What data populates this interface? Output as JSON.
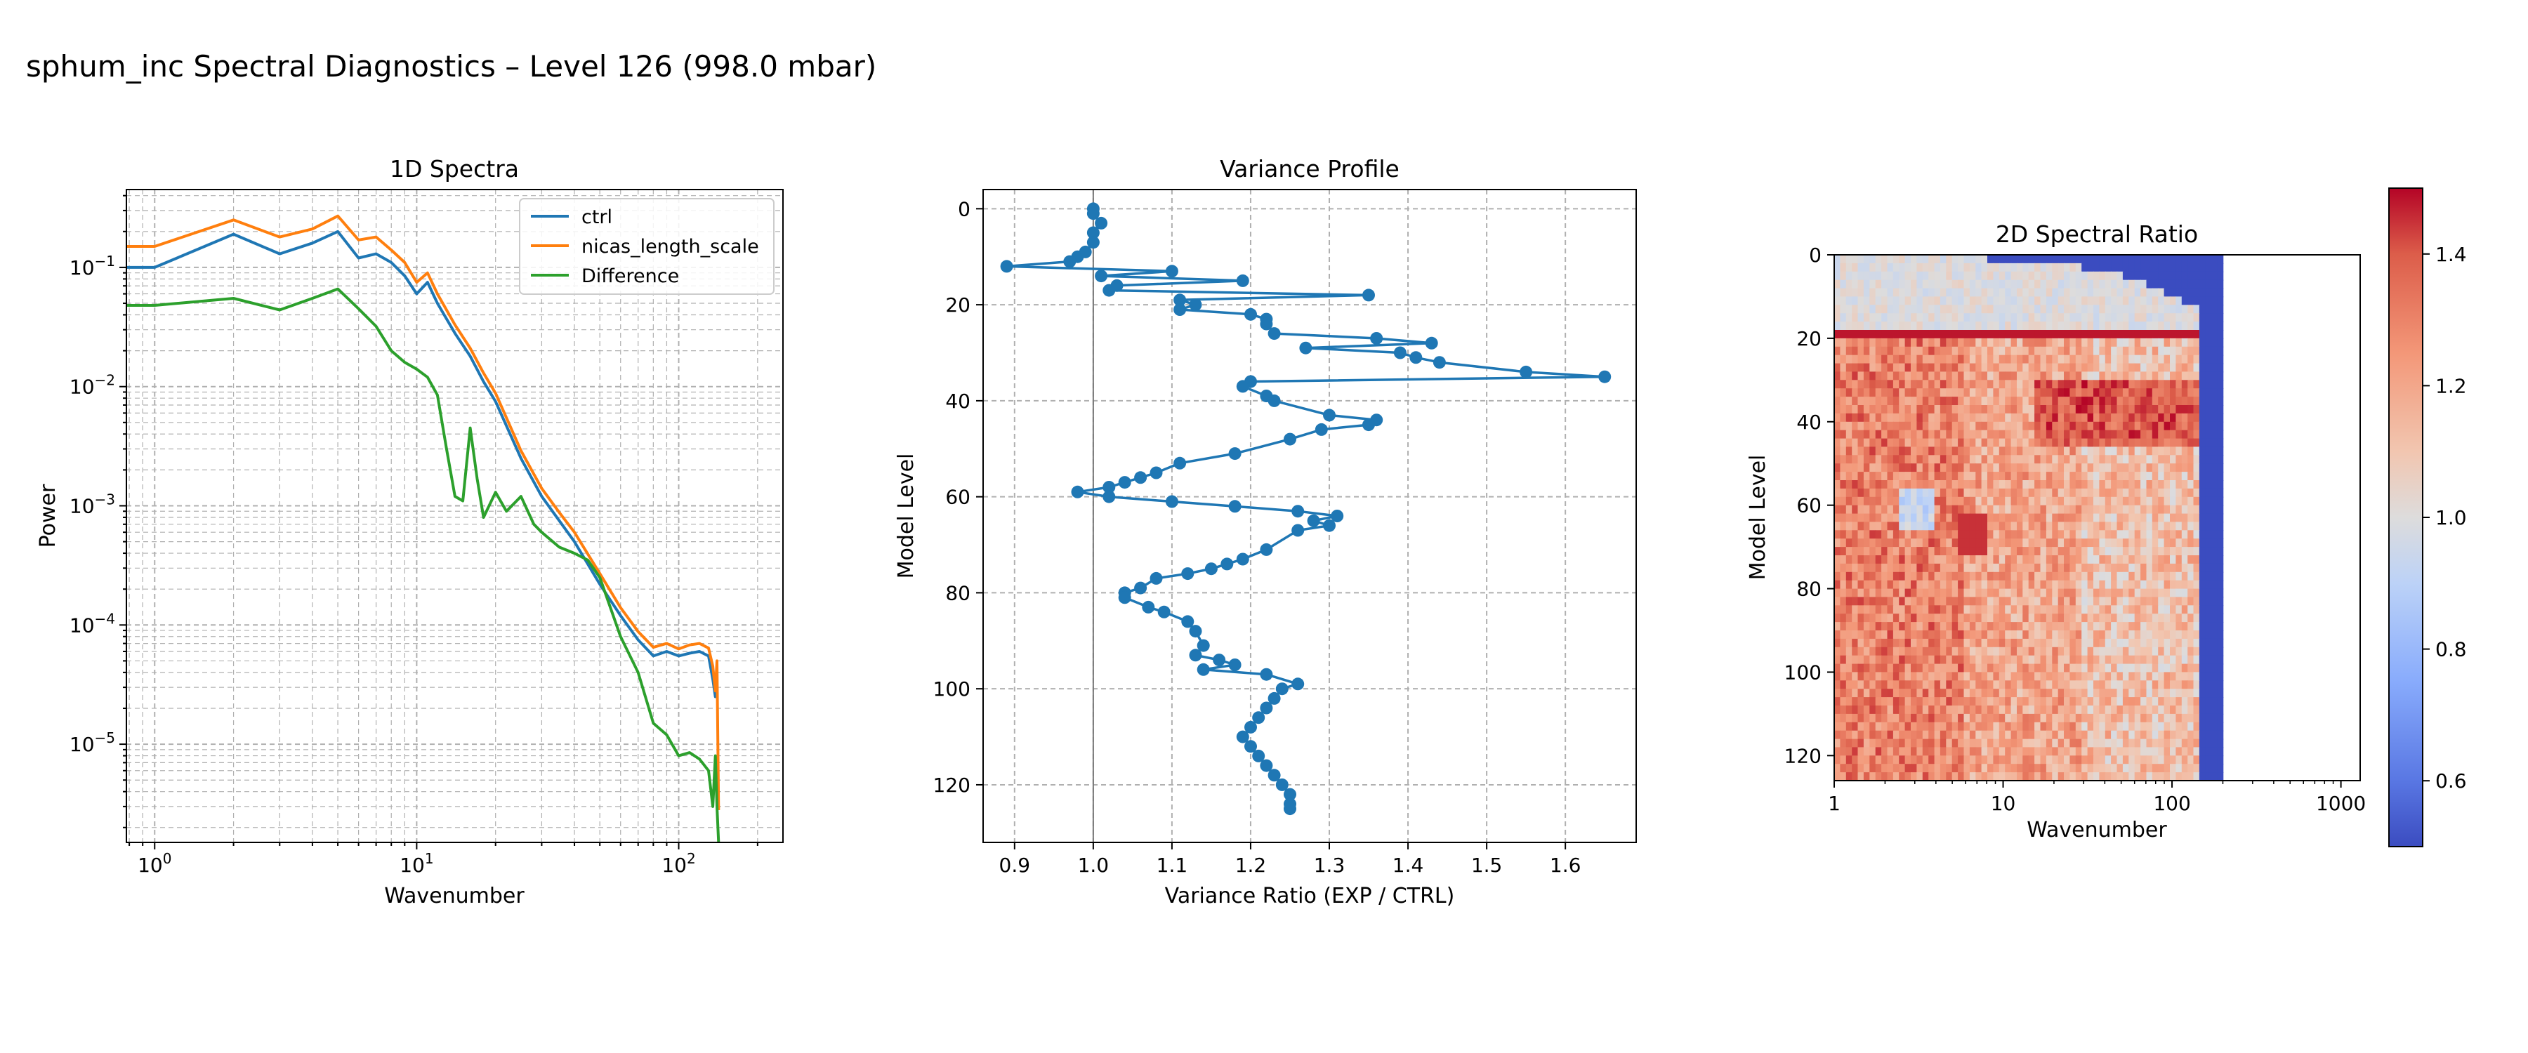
{
  "figure": {
    "title": "sphum_inc Spectral Diagnostics – Level 126 (998.0 mbar)"
  },
  "chart_data": [
    {
      "type": "line",
      "title": "1D Spectra",
      "xlabel": "Wavenumber",
      "ylabel": "Power",
      "xscale": "log",
      "yscale": "log",
      "xlim": [
        0.78,
        250
      ],
      "ylim": [
        1.5e-06,
        0.45
      ],
      "x_tick_labels": [
        "10^0",
        "10^1",
        "10^2"
      ],
      "y_tick_labels": [
        "10^-5",
        "10^-4",
        "10^-3",
        "10^-2",
        "10^-1"
      ],
      "grid": true,
      "legend": "top-right",
      "series": [
        {
          "name": "ctrl",
          "color": "#1f77b4",
          "x": [
            0.78,
            1,
            2,
            3,
            4,
            5,
            6,
            7,
            8,
            9,
            10,
            11,
            12,
            14,
            16,
            18,
            20,
            25,
            30,
            35,
            40,
            50,
            60,
            70,
            80,
            90,
            100,
            110,
            120,
            130,
            135,
            138,
            140
          ],
          "y": [
            0.1,
            0.1,
            0.19,
            0.13,
            0.16,
            0.2,
            0.12,
            0.13,
            0.11,
            0.085,
            0.06,
            0.075,
            0.05,
            0.028,
            0.018,
            0.011,
            0.0075,
            0.0025,
            0.0012,
            0.00075,
            0.0005,
            0.00022,
            0.00012,
            7.5e-05,
            5.5e-05,
            6e-05,
            5.5e-05,
            5.8e-05,
            6e-05,
            5.5e-05,
            3.5e-05,
            2.5e-05,
            4e-05
          ]
        },
        {
          "name": "nicas_length_scale",
          "color": "#ff7f0e",
          "x": [
            0.78,
            1,
            2,
            3,
            4,
            5,
            6,
            7,
            8,
            9,
            10,
            11,
            12,
            14,
            16,
            18,
            20,
            25,
            30,
            35,
            40,
            50,
            60,
            70,
            80,
            90,
            100,
            110,
            120,
            130,
            135,
            138,
            140,
            142
          ],
          "y": [
            0.15,
            0.15,
            0.25,
            0.18,
            0.21,
            0.27,
            0.17,
            0.18,
            0.14,
            0.11,
            0.075,
            0.09,
            0.06,
            0.033,
            0.021,
            0.013,
            0.0088,
            0.0029,
            0.0014,
            0.00088,
            0.0006,
            0.00027,
            0.00014,
            8.8e-05,
            6.5e-05,
            7e-05,
            6.3e-05,
            6.8e-05,
            7e-05,
            6.4e-05,
            4.5e-05,
            2.8e-05,
            5e-05,
            2.8e-06
          ]
        },
        {
          "name": "Difference",
          "color": "#2ca02c",
          "x": [
            0.78,
            1,
            2,
            3,
            4,
            5,
            6,
            7,
            8,
            9,
            10,
            11,
            12,
            13,
            14,
            15,
            16,
            17,
            18,
            20,
            22,
            25,
            28,
            30,
            35,
            40,
            45,
            50,
            60,
            70,
            80,
            90,
            100,
            110,
            120,
            130,
            135,
            138,
            140,
            142
          ],
          "y": [
            0.048,
            0.048,
            0.055,
            0.044,
            0.055,
            0.066,
            0.045,
            0.032,
            0.02,
            0.016,
            0.014,
            0.012,
            0.0085,
            0.003,
            0.0012,
            0.0011,
            0.0045,
            0.0017,
            0.0008,
            0.0013,
            0.0009,
            0.0012,
            0.0007,
            0.0006,
            0.00045,
            0.0004,
            0.00035,
            0.00025,
            8e-05,
            4e-05,
            1.5e-05,
            1.2e-05,
            8e-06,
            8.5e-06,
            7.5e-06,
            6e-06,
            3e-06,
            8e-06,
            3e-06,
            1.5e-06
          ]
        }
      ]
    },
    {
      "type": "line",
      "title": "Variance Profile",
      "xlabel": "Variance Ratio (EXP / CTRL)",
      "ylabel": "Model Level",
      "xlim": [
        0.86,
        1.69
      ],
      "ylim": [
        132,
        -4
      ],
      "x_ticks": [
        0.9,
        1.0,
        1.1,
        1.2,
        1.3,
        1.4,
        1.5,
        1.6
      ],
      "y_ticks": [
        0,
        20,
        40,
        60,
        80,
        100,
        120
      ],
      "reference_line_x": 1.0,
      "grid": true,
      "series": [
        {
          "name": "",
          "color": "#1f77b4",
          "marker": "circle",
          "x": [
            1.0,
            1.0,
            1.01,
            1.0,
            1.0,
            0.99,
            0.98,
            0.97,
            0.89,
            1.1,
            1.01,
            1.19,
            1.03,
            1.02,
            1.35,
            1.11,
            1.13,
            1.11,
            1.2,
            1.22,
            1.22,
            1.23,
            1.36,
            1.43,
            1.27,
            1.39,
            1.41,
            1.44,
            1.55,
            1.65,
            1.2,
            1.19,
            1.22,
            1.23,
            1.3,
            1.36,
            1.35,
            1.29,
            1.25,
            1.18,
            1.11,
            1.08,
            1.06,
            1.04,
            1.02,
            0.98,
            1.02,
            1.1,
            1.18,
            1.26,
            1.31,
            1.28,
            1.3,
            1.26,
            1.22,
            1.19,
            1.17,
            1.15,
            1.12,
            1.08,
            1.06,
            1.04,
            1.04,
            1.07,
            1.09,
            1.12,
            1.13,
            1.14,
            1.13,
            1.16,
            1.18,
            1.14,
            1.22,
            1.26,
            1.24,
            1.23,
            1.22,
            1.21,
            1.2,
            1.19,
            1.2,
            1.21,
            1.22,
            1.23,
            1.24,
            1.25,
            1.25,
            1.25
          ],
          "y": [
            0,
            1,
            3,
            5,
            7,
            9,
            10,
            11,
            12,
            13,
            14,
            15,
            16,
            17,
            18,
            19,
            20,
            21,
            22,
            23,
            24,
            26,
            27,
            28,
            29,
            30,
            31,
            32,
            34,
            35,
            36,
            37,
            39,
            40,
            43,
            44,
            45,
            46,
            48,
            51,
            53,
            55,
            56,
            57,
            58,
            59,
            60,
            61,
            62,
            63,
            64,
            65,
            66,
            67,
            71,
            73,
            74,
            75,
            76,
            77,
            79,
            80,
            81,
            83,
            84,
            86,
            88,
            91,
            93,
            94,
            95,
            96,
            97,
            99,
            100,
            102,
            104,
            106,
            108,
            110,
            112,
            114,
            116,
            118,
            120,
            122,
            124,
            125
          ]
        }
      ]
    },
    {
      "type": "heatmap",
      "title": "2D Spectral Ratio",
      "xlabel": "Wavenumber",
      "ylabel": "Model Level",
      "xscale": "log",
      "xlim": [
        1,
        1300
      ],
      "ylim": [
        126,
        0
      ],
      "x_tick_labels": [
        "1",
        "10",
        "100",
        "1000"
      ],
      "y_ticks": [
        0,
        20,
        40,
        60,
        80,
        100,
        120
      ],
      "data_extent_wavenumber": [
        1,
        200
      ],
      "colormap": "coolwarm",
      "colorbar": {
        "min": 0.5,
        "max": 1.5,
        "ticks": [
          "0.6",
          "0.8",
          "1.0",
          "1.2",
          "1.4"
        ]
      }
    }
  ]
}
